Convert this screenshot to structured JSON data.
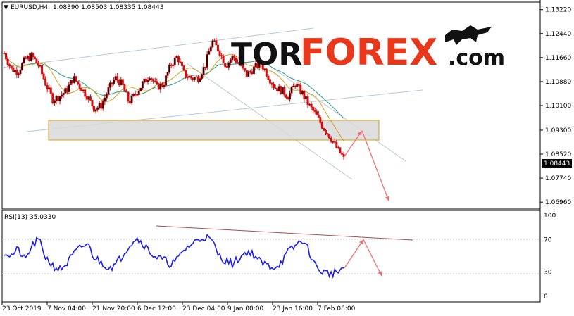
{
  "header": {
    "symbol_label": "EURUSD,H4",
    "prices": "1.08390 1.08503 1.08335 1.08443",
    "rsi_label": "RSI(13) 35.0330"
  },
  "logo": {
    "tor": "TOR",
    "forex": "FOREX",
    "com": ".com",
    "colors": {
      "tor": "#111111",
      "forex": "#e8381c",
      "com": "#111111"
    }
  },
  "colors": {
    "bull": "#d01010",
    "bear": "#d01010",
    "ma_fast": "#d4a020",
    "ma_slow": "#2a9a8a",
    "channel": "#b9c8d2",
    "zone_fill": "#d9d9d9",
    "forecast": "#f07070",
    "rsi": "#1c1cf0",
    "rsi_trend": "#a05050"
  },
  "chart_data": [
    {
      "type": "candlestick",
      "symbol": "EURUSD",
      "timeframe": "H4",
      "ohlc_last": {
        "open": 1.0839,
        "high": 1.08503,
        "low": 1.08335,
        "close": 1.08443
      },
      "current_price_label": "1.08443",
      "y_ticks": [
        "1.13220",
        "1.12440",
        "1.11660",
        "1.10880",
        "1.10100",
        "1.09300",
        "1.08520",
        "1.07740",
        "1.06960"
      ],
      "x_ticks": [
        "23 Oct 2019",
        "7 Nov 04:00",
        "21 Nov 20:00",
        "6 Dec 12:00",
        "23 Dec 04:00",
        "9 Jan 00:00",
        "23 Jan 16:00",
        "7 Feb 08:00"
      ],
      "ylim": [
        1.0685,
        1.1335
      ],
      "close_path": [
        1.118,
        1.113,
        1.112,
        1.116,
        1.117,
        1.114,
        1.108,
        1.103,
        1.104,
        1.106,
        1.11,
        1.107,
        1.104,
        1.1,
        1.101,
        1.106,
        1.11,
        1.108,
        1.102,
        1.105,
        1.108,
        1.111,
        1.107,
        1.108,
        1.114,
        1.117,
        1.111,
        1.11,
        1.11,
        1.114,
        1.122,
        1.119,
        1.114,
        1.117,
        1.114,
        1.111,
        1.113,
        1.115,
        1.111,
        1.107,
        1.106,
        1.104,
        1.108,
        1.105,
        1.101,
        1.098,
        1.094,
        1.091,
        1.087,
        1.084
      ]
    },
    {
      "type": "line",
      "name": "RSI(13)",
      "value": 35.033,
      "y_ticks": [
        "100",
        "70",
        "30",
        "0"
      ],
      "ylim": [
        0,
        100
      ],
      "values": [
        55,
        50,
        58,
        44,
        62,
        70,
        48,
        38,
        33,
        40,
        52,
        60,
        65,
        48,
        42,
        36,
        38,
        50,
        63,
        72,
        66,
        55,
        48,
        45,
        40,
        45,
        58,
        64,
        70,
        74,
        68,
        50,
        44,
        40,
        48,
        55,
        52,
        42,
        38,
        36,
        42,
        55,
        62,
        70,
        56,
        36,
        30,
        28,
        30,
        35
      ]
    }
  ],
  "forecast": {
    "price_path": [
      1.0845,
      1.0928,
      1.07
    ],
    "rsi_path": [
      35,
      70,
      25
    ]
  }
}
